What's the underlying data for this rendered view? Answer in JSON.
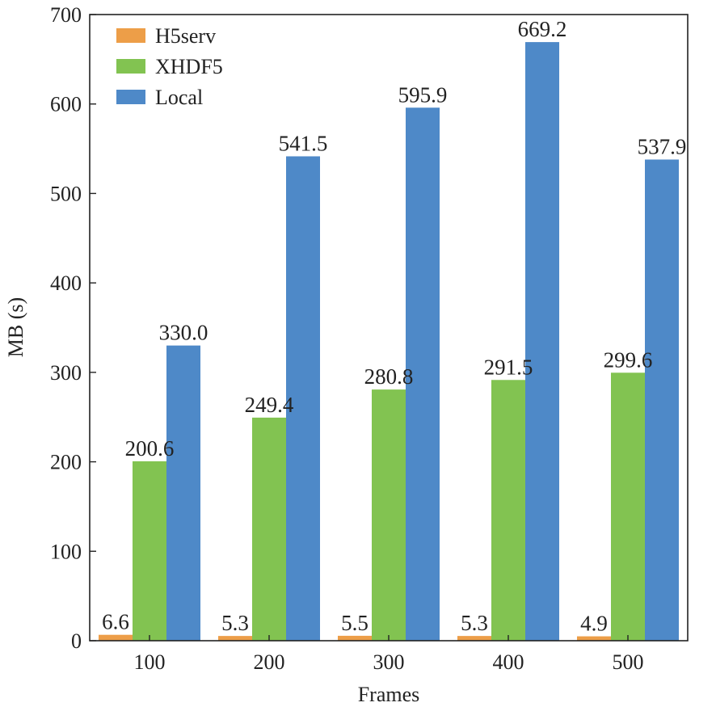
{
  "chart_data": {
    "type": "bar",
    "title": "",
    "xlabel": "Frames",
    "ylabel": "MB (s)",
    "categories": [
      "100",
      "200",
      "300",
      "400",
      "500"
    ],
    "ylim": [
      0,
      700
    ],
    "yticks": [
      0,
      100,
      200,
      300,
      400,
      500,
      600,
      700
    ],
    "grid": false,
    "legend_position": "top-left",
    "series": [
      {
        "name": "H5serv",
        "color": "#ED9E48",
        "values": [
          6.6,
          5.3,
          5.5,
          5.3,
          4.9
        ],
        "labels": [
          "6.6",
          "5.3",
          "5.5",
          "5.3",
          "4.9"
        ]
      },
      {
        "name": "XHDF5",
        "color": "#82C351",
        "values": [
          200.6,
          249.4,
          280.8,
          291.5,
          299.6
        ],
        "labels": [
          "200.6",
          "249.4",
          "280.8",
          "291.5",
          "299.6"
        ]
      },
      {
        "name": "Local",
        "color": "#4E89C8",
        "values": [
          330.0,
          541.5,
          595.9,
          669.2,
          537.9
        ],
        "labels": [
          "330.0",
          "541.5",
          "595.9",
          "669.2",
          "537.9"
        ]
      }
    ]
  }
}
